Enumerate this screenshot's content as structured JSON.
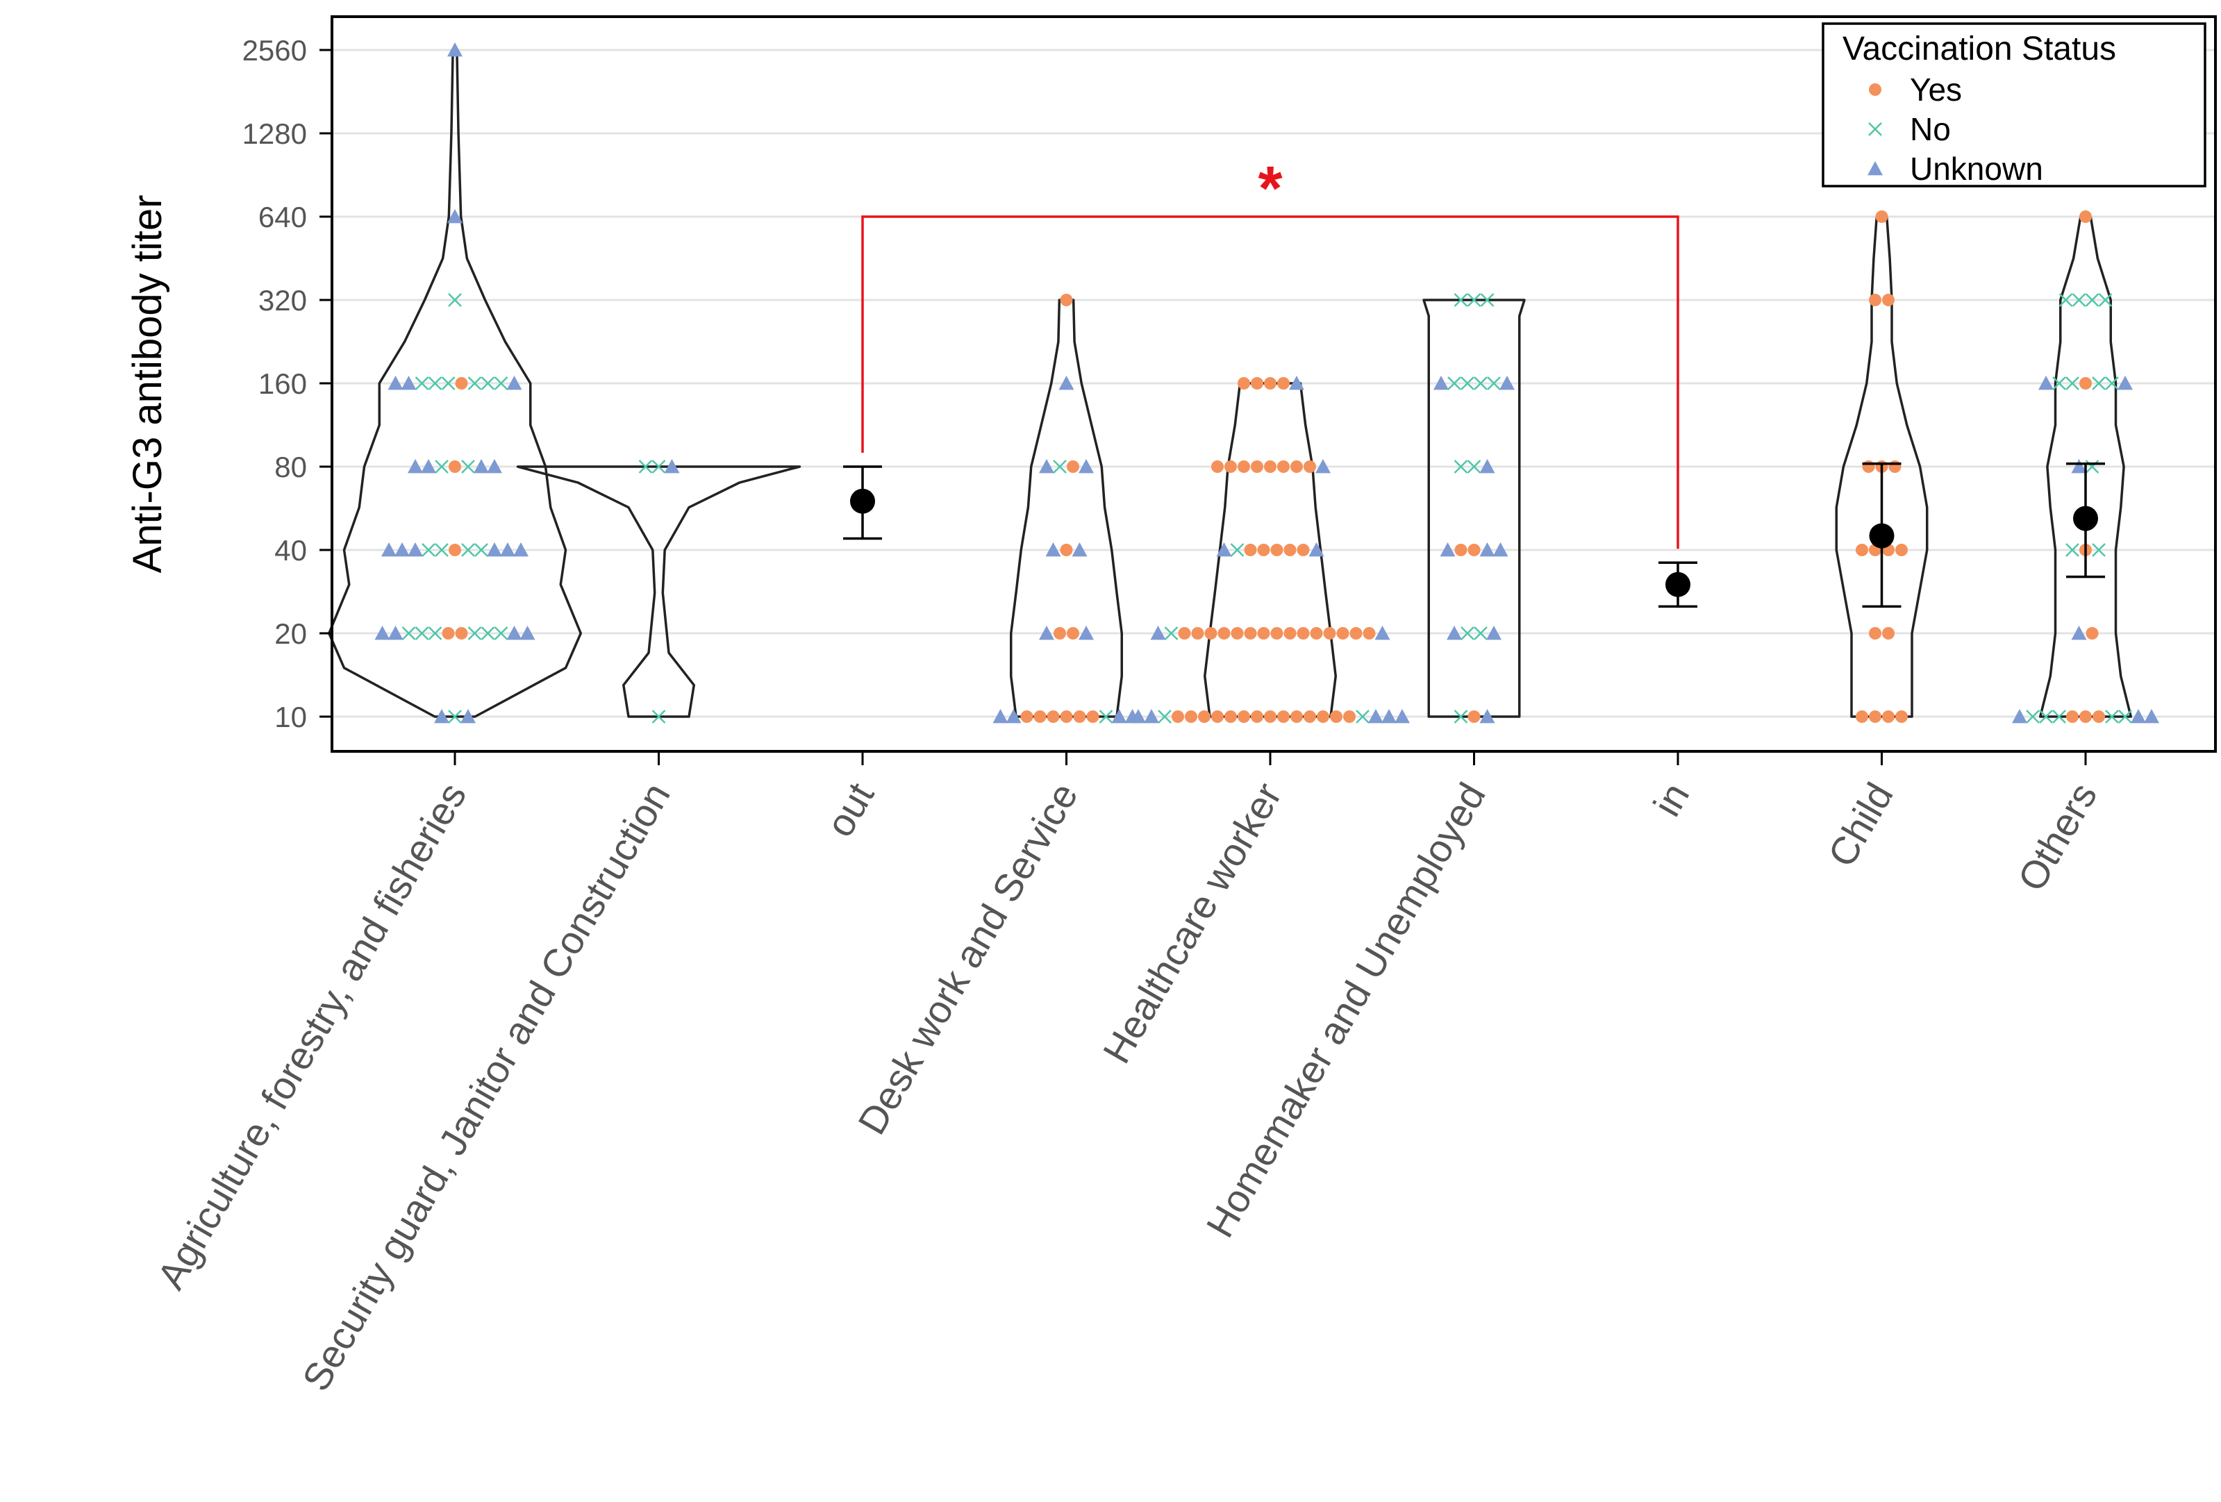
{
  "chart_data": {
    "type": "violin",
    "title": "",
    "xlabel": "",
    "ylabel": "Anti-G3 antibody titer",
    "yscale": "log2",
    "ylim": [
      8,
      3400
    ],
    "yticks": [
      10,
      20,
      40,
      80,
      160,
      320,
      640,
      1280,
      2560
    ],
    "ytick_labels": [
      "10",
      "20",
      "40",
      "80",
      "160",
      "320",
      "640",
      "1280",
      "2560"
    ],
    "grid": "horizontal",
    "categories": [
      "Agriculture, forestry, and fisheries",
      "Security guard, Janitor and Construction",
      "out",
      "Desk work and Service",
      "Healthcare worker",
      "Homemaker and Unemployed",
      "in",
      "Child",
      "Others"
    ],
    "legend": {
      "title": "Vaccination Status",
      "position": "top-right",
      "entries": [
        {
          "label": "Yes",
          "marker": "circle",
          "color": "#F4915A"
        },
        {
          "label": "No",
          "marker": "x",
          "color": "#4FC6A8"
        },
        {
          "label": "Unknown",
          "marker": "triangle",
          "color": "#7E9AD2"
        }
      ]
    },
    "groups": [
      {
        "category": "Agriculture, forestry, and fisheries",
        "violin": [
          [
            10,
            0.2
          ],
          [
            15,
            1.1
          ],
          [
            20,
            1.25
          ],
          [
            30,
            1.05
          ],
          [
            40,
            1.1
          ],
          [
            57,
            0.95
          ],
          [
            80,
            0.9
          ],
          [
            113,
            0.75
          ],
          [
            160,
            0.75
          ],
          [
            226,
            0.5
          ],
          [
            320,
            0.3
          ],
          [
            452,
            0.12
          ],
          [
            640,
            0.06
          ],
          [
            1280,
            0.035
          ],
          [
            2560,
            0.02
          ]
        ],
        "points": [
          {
            "titer": 2560,
            "yes": 0,
            "no": 0,
            "unknown": 1
          },
          {
            "titer": 640,
            "yes": 0,
            "no": 0,
            "unknown": 1
          },
          {
            "titer": 320,
            "yes": 0,
            "no": 1,
            "unknown": 0
          },
          {
            "titer": 160,
            "yes": 1,
            "no": 6,
            "unknown": 3
          },
          {
            "titer": 80,
            "yes": 1,
            "no": 2,
            "unknown": 4
          },
          {
            "titer": 40,
            "yes": 1,
            "no": 4,
            "unknown": 6
          },
          {
            "titer": 20,
            "yes": 2,
            "no": 6,
            "unknown": 4
          },
          {
            "titer": 10,
            "yes": 0,
            "no": 1,
            "unknown": 2
          }
        ]
      },
      {
        "category": "Security guard, Janitor and Construction",
        "violin": [
          [
            10,
            0.3
          ],
          [
            13,
            0.35
          ],
          [
            17,
            0.1
          ],
          [
            28,
            0.04
          ],
          [
            40,
            0.06
          ],
          [
            57,
            0.3
          ],
          [
            70,
            0.8
          ],
          [
            80,
            1.4
          ]
        ],
        "points": [
          {
            "titer": 80,
            "yes": 0,
            "no": 2,
            "unknown": 1
          },
          {
            "titer": 10,
            "yes": 0,
            "no": 1,
            "unknown": 0
          }
        ]
      },
      {
        "category": "out",
        "mean": 60,
        "ci": [
          44,
          80
        ]
      },
      {
        "category": "Desk work and Service",
        "violin": [
          [
            10,
            0.5
          ],
          [
            14,
            0.55
          ],
          [
            20,
            0.55
          ],
          [
            28,
            0.5
          ],
          [
            40,
            0.45
          ],
          [
            57,
            0.38
          ],
          [
            80,
            0.35
          ],
          [
            113,
            0.25
          ],
          [
            160,
            0.15
          ],
          [
            226,
            0.08
          ],
          [
            320,
            0.07
          ]
        ],
        "points": [
          {
            "titer": 320,
            "yes": 1,
            "no": 0,
            "unknown": 0
          },
          {
            "titer": 160,
            "yes": 0,
            "no": 0,
            "unknown": 1
          },
          {
            "titer": 80,
            "yes": 1,
            "no": 1,
            "unknown": 2
          },
          {
            "titer": 40,
            "yes": 1,
            "no": 0,
            "unknown": 2
          },
          {
            "titer": 20,
            "yes": 2,
            "no": 0,
            "unknown": 2
          },
          {
            "titer": 10,
            "yes": 6,
            "no": 1,
            "unknown": 4
          }
        ]
      },
      {
        "category": "Healthcare worker",
        "violin": [
          [
            10,
            0.6
          ],
          [
            14,
            0.65
          ],
          [
            20,
            0.6
          ],
          [
            28,
            0.55
          ],
          [
            40,
            0.5
          ],
          [
            57,
            0.45
          ],
          [
            80,
            0.42
          ],
          [
            113,
            0.35
          ],
          [
            160,
            0.3
          ]
        ],
        "points": [
          {
            "titer": 160,
            "yes": 4,
            "no": 0,
            "unknown": 1
          },
          {
            "titer": 80,
            "yes": 8,
            "no": 0,
            "unknown": 1
          },
          {
            "titer": 40,
            "yes": 5,
            "no": 1,
            "unknown": 2
          },
          {
            "titer": 20,
            "yes": 15,
            "no": 1,
            "unknown": 2
          },
          {
            "titer": 10,
            "yes": 14,
            "no": 2,
            "unknown": 5
          }
        ]
      },
      {
        "category": "Homemaker and Unemployed",
        "violin": [
          [
            10,
            0.45
          ],
          [
            14,
            0.45
          ],
          [
            20,
            0.45
          ],
          [
            40,
            0.45
          ],
          [
            80,
            0.45
          ],
          [
            160,
            0.45
          ],
          [
            280,
            0.45
          ],
          [
            320,
            0.5
          ]
        ],
        "points": [
          {
            "titer": 320,
            "yes": 0,
            "no": 3,
            "unknown": 0
          },
          {
            "titer": 160,
            "yes": 0,
            "no": 4,
            "unknown": 2
          },
          {
            "titer": 80,
            "yes": 0,
            "no": 2,
            "unknown": 1
          },
          {
            "titer": 40,
            "yes": 2,
            "no": 0,
            "unknown": 3
          },
          {
            "titer": 20,
            "yes": 0,
            "no": 2,
            "unknown": 2
          },
          {
            "titer": 10,
            "yes": 1,
            "no": 1,
            "unknown": 1
          }
        ]
      },
      {
        "category": "in",
        "mean": 30,
        "ci": [
          25,
          36
        ]
      },
      {
        "category": "Child",
        "mean": 45,
        "ci": [
          25,
          82
        ],
        "violin": [
          [
            10,
            0.3
          ],
          [
            14,
            0.3
          ],
          [
            20,
            0.3
          ],
          [
            40,
            0.45
          ],
          [
            57,
            0.45
          ],
          [
            80,
            0.38
          ],
          [
            113,
            0.25
          ],
          [
            160,
            0.15
          ],
          [
            226,
            0.1
          ],
          [
            320,
            0.1
          ],
          [
            452,
            0.08
          ],
          [
            640,
            0.05
          ]
        ],
        "points": [
          {
            "titer": 640,
            "yes": 1,
            "no": 0,
            "unknown": 0
          },
          {
            "titer": 320,
            "yes": 2,
            "no": 0,
            "unknown": 0
          },
          {
            "titer": 80,
            "yes": 3,
            "no": 0,
            "unknown": 0
          },
          {
            "titer": 40,
            "yes": 4,
            "no": 0,
            "unknown": 0
          },
          {
            "titer": 20,
            "yes": 2,
            "no": 0,
            "unknown": 0
          },
          {
            "titer": 10,
            "yes": 4,
            "no": 0,
            "unknown": 0
          }
        ]
      },
      {
        "category": "Others",
        "mean": 52,
        "ci": [
          32,
          82
        ],
        "violin": [
          [
            10,
            0.45
          ],
          [
            14,
            0.35
          ],
          [
            20,
            0.3
          ],
          [
            28,
            0.3
          ],
          [
            40,
            0.3
          ],
          [
            57,
            0.35
          ],
          [
            80,
            0.38
          ],
          [
            113,
            0.3
          ],
          [
            160,
            0.3
          ],
          [
            226,
            0.25
          ],
          [
            320,
            0.25
          ],
          [
            452,
            0.12
          ],
          [
            640,
            0.05
          ]
        ],
        "points": [
          {
            "titer": 640,
            "yes": 1,
            "no": 0,
            "unknown": 0
          },
          {
            "titer": 320,
            "yes": 0,
            "no": 4,
            "unknown": 0
          },
          {
            "titer": 160,
            "yes": 1,
            "no": 4,
            "unknown": 2
          },
          {
            "titer": 80,
            "yes": 0,
            "no": 1,
            "unknown": 1
          },
          {
            "titer": 40,
            "yes": 1,
            "no": 2,
            "unknown": 0
          },
          {
            "titer": 20,
            "yes": 1,
            "no": 0,
            "unknown": 1
          },
          {
            "titer": 10,
            "yes": 3,
            "no": 5,
            "unknown": 3
          }
        ]
      }
    ],
    "annotations": [
      {
        "type": "significance-bracket",
        "from": "out",
        "to": "in",
        "label": "*",
        "color": "#E8141C"
      }
    ]
  }
}
